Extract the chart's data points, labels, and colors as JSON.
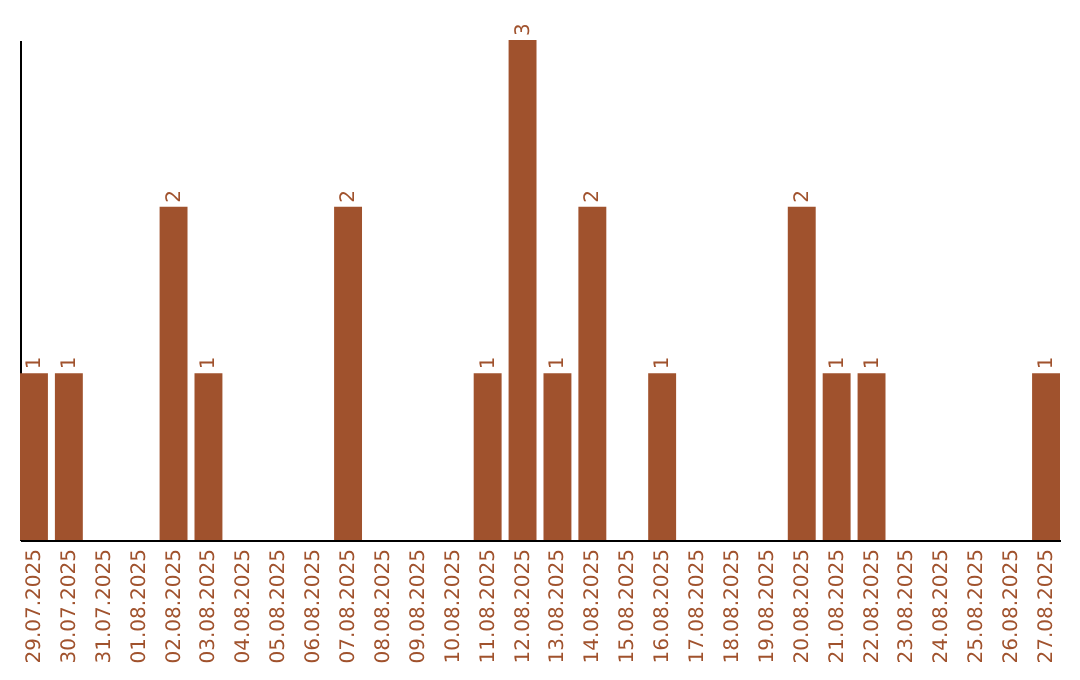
{
  "chart_data": {
    "type": "bar",
    "categories": [
      "29.07.2025",
      "30.07.2025",
      "31.07.2025",
      "01.08.2025",
      "02.08.2025",
      "03.08.2025",
      "04.08.2025",
      "05.08.2025",
      "06.08.2025",
      "07.08.2025",
      "08.08.2025",
      "09.08.2025",
      "10.08.2025",
      "11.08.2025",
      "12.08.2025",
      "13.08.2025",
      "14.08.2025",
      "15.08.2025",
      "16.08.2025",
      "17.08.2025",
      "18.08.2025",
      "19.08.2025",
      "20.08.2025",
      "21.08.2025",
      "22.08.2025",
      "23.08.2025",
      "24.08.2025",
      "25.08.2025",
      "26.08.2025",
      "27.08.2025"
    ],
    "values": [
      1,
      1,
      0,
      0,
      2,
      1,
      0,
      0,
      0,
      2,
      0,
      0,
      0,
      1,
      3,
      1,
      2,
      0,
      1,
      0,
      0,
      0,
      2,
      1,
      1,
      0,
      0,
      0,
      0,
      1
    ],
    "value_labels": [
      "1",
      "1",
      null,
      null,
      "2",
      "1",
      null,
      null,
      null,
      "2",
      null,
      null,
      null,
      "1",
      "3",
      "1",
      "2",
      null,
      "1",
      null,
      null,
      null,
      "2",
      "1",
      "1",
      null,
      null,
      null,
      null,
      "1"
    ],
    "color": "#a0522d",
    "tick_labels": "x"
  }
}
